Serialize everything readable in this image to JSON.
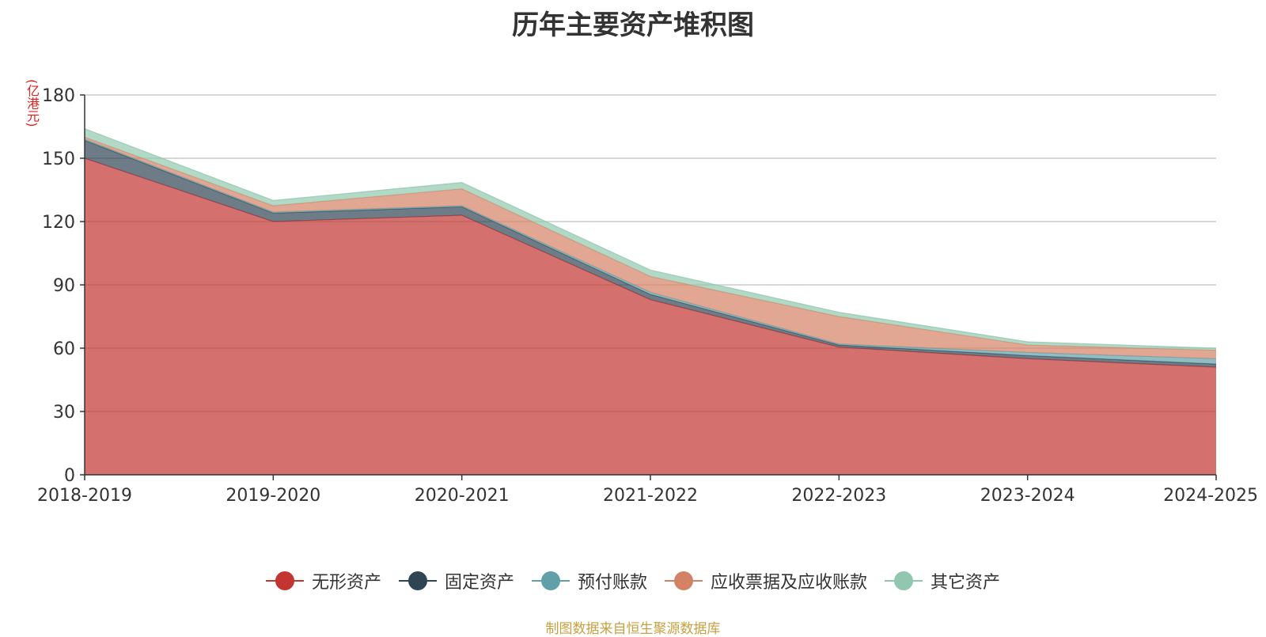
{
  "chart_data": {
    "type": "area",
    "stacked": true,
    "title": "历年主要资产堆积图",
    "unit": "(亿港元)",
    "categories": [
      "2018-2019",
      "2019-2020",
      "2020-2021",
      "2021-2022",
      "2022-2023",
      "2023-2024",
      "2024-2025"
    ],
    "ylim": [
      0,
      180
    ],
    "yticks": [
      0,
      30,
      60,
      90,
      120,
      150,
      180
    ],
    "grid": true,
    "legend_position": "bottom",
    "series": [
      {
        "name": "无形资产",
        "color": "#c23531",
        "values": [
          150,
          120,
          123,
          83,
          60.5,
          55,
          51
        ]
      },
      {
        "name": "固定资产",
        "color": "#2f4554",
        "values": [
          8.5,
          4,
          4,
          2.5,
          1,
          1.5,
          1.5
        ]
      },
      {
        "name": "预付账款",
        "color": "#61a0a8",
        "values": [
          0.5,
          0.5,
          0.5,
          1,
          0.5,
          1.5,
          2.5
        ]
      },
      {
        "name": "应收票据及应收账款",
        "color": "#d48265",
        "values": [
          1,
          3,
          8,
          7.5,
          13,
          3.5,
          4
        ]
      },
      {
        "name": "其它资产",
        "color": "#91c7ae",
        "values": [
          4,
          2.5,
          3,
          3,
          2,
          1.5,
          1
        ]
      }
    ],
    "source": "制图数据来自恒生聚源数据库"
  }
}
